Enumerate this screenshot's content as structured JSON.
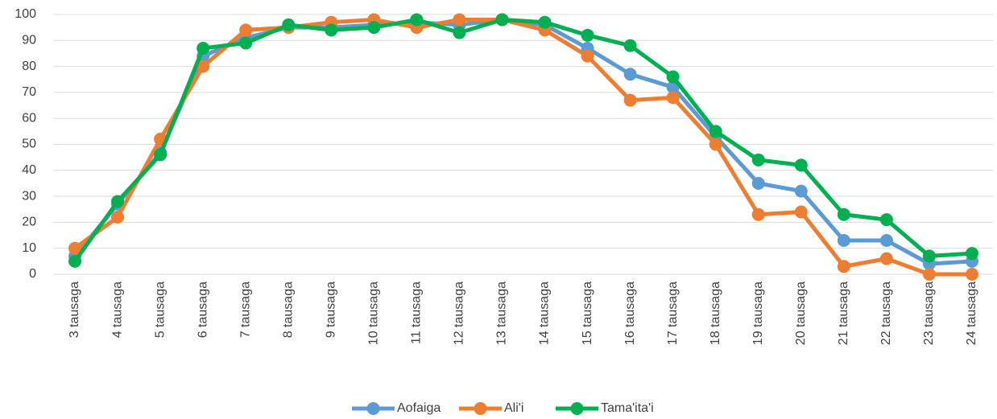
{
  "chart_data": {
    "type": "line",
    "categories": [
      "3 tausaga",
      "4 tausaga",
      "5 tausaga",
      "6 tausaga",
      "7 tausaga",
      "8 tausaga",
      "9 tausaga",
      "10 tausaga",
      "11 tausaga",
      "12 tausaga",
      "13 tausaga",
      "14 tausaga",
      "15 tausaga",
      "16 tausaga",
      "17 tausaga",
      "18 tausaga",
      "19 tausaga",
      "20 tausaga",
      "21 tausaga",
      "22 tausaga",
      "23 tausaga",
      "24 tausaga"
    ],
    "series": [
      {
        "name": "Aofaiga",
        "color": "#5b9bd5",
        "values": [
          7,
          27,
          47,
          84,
          91,
          95,
          95,
          96,
          97,
          96,
          98,
          96,
          87,
          77,
          72,
          53,
          35,
          32,
          13,
          13,
          4,
          5
        ]
      },
      {
        "name": "Ali'i",
        "color": "#ed7d31",
        "values": [
          10,
          22,
          52,
          80,
          94,
          95,
          97,
          98,
          95,
          98,
          98,
          94,
          84,
          67,
          68,
          50,
          23,
          24,
          3,
          6,
          0,
          0
        ]
      },
      {
        "name": "Tama'ita'i",
        "color": "#00b050",
        "values": [
          5,
          28,
          46,
          87,
          89,
          96,
          94,
          95,
          98,
          93,
          98,
          97,
          92,
          88,
          76,
          55,
          44,
          42,
          23,
          21,
          7,
          8
        ]
      }
    ],
    "ylim": [
      0,
      100
    ],
    "yticks": [
      0,
      10,
      20,
      30,
      40,
      50,
      60,
      70,
      80,
      90,
      100
    ],
    "grid": true,
    "legend": "bottom"
  }
}
